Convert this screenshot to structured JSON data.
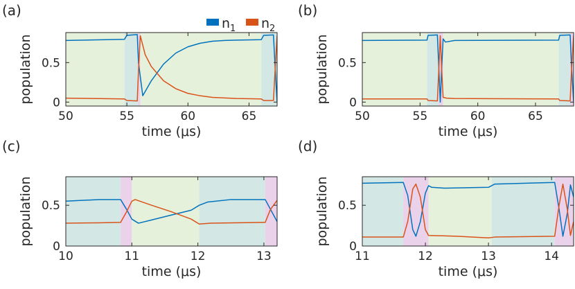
{
  "legend": {
    "items": [
      {
        "label": "n",
        "sub": "1",
        "color": "#0072BD"
      },
      {
        "label": "n",
        "sub": "2",
        "color": "#D95319"
      }
    ]
  },
  "colors": {
    "green": "#E6F1DC",
    "teal": "#D3E8E5",
    "pink": "#EBD2EB",
    "n1": "#0072BD",
    "n2": "#D95319",
    "axis": "#262626"
  },
  "chart_data": [
    {
      "panel": "(a)",
      "type": "line",
      "xlabel": "time (μs)",
      "ylabel": "population",
      "xlim": [
        50,
        67.3
      ],
      "ylim": [
        -0.05,
        0.88
      ],
      "xticks": [
        50,
        55,
        60,
        65
      ],
      "yticks": [
        0,
        0.5
      ],
      "regions": [
        {
          "from": 50,
          "to": 54.8,
          "color": "green"
        },
        {
          "from": 54.8,
          "to": 55.9,
          "color": "teal"
        },
        {
          "from": 55.9,
          "to": 56.1,
          "color": "pink"
        },
        {
          "from": 56.1,
          "to": 66.0,
          "color": "green"
        },
        {
          "from": 66.0,
          "to": 67.3,
          "color": "teal"
        }
      ],
      "series": [
        {
          "name": "n1",
          "color": "n1",
          "points": [
            [
              50,
              0.78
            ],
            [
              54.8,
              0.795
            ],
            [
              55.0,
              0.845
            ],
            [
              55.85,
              0.855
            ],
            [
              55.95,
              0.5
            ],
            [
              56.3,
              0.08
            ],
            [
              57,
              0.27
            ],
            [
              58,
              0.48
            ],
            [
              59,
              0.62
            ],
            [
              60,
              0.7
            ],
            [
              61,
              0.745
            ],
            [
              62,
              0.77
            ],
            [
              63,
              0.78
            ],
            [
              64,
              0.785
            ],
            [
              66.0,
              0.79
            ],
            [
              66.2,
              0.845
            ],
            [
              67.0,
              0.85
            ],
            [
              67.15,
              0.4
            ],
            [
              67.3,
              0.0
            ]
          ]
        },
        {
          "name": "n2",
          "color": "n2",
          "points": [
            [
              50,
              0.05
            ],
            [
              54.8,
              0.04
            ],
            [
              55.0,
              0.02
            ],
            [
              55.85,
              0.015
            ],
            [
              55.95,
              0.4
            ],
            [
              56.1,
              0.84
            ],
            [
              56.5,
              0.6
            ],
            [
              57,
              0.45
            ],
            [
              58,
              0.27
            ],
            [
              59,
              0.17
            ],
            [
              60,
              0.11
            ],
            [
              61,
              0.08
            ],
            [
              62,
              0.06
            ],
            [
              64,
              0.045
            ],
            [
              66.0,
              0.04
            ],
            [
              66.2,
              0.02
            ],
            [
              67.0,
              0.02
            ],
            [
              67.15,
              0.45
            ],
            [
              67.3,
              0.84
            ]
          ]
        }
      ]
    },
    {
      "panel": "(b)",
      "type": "line",
      "xlabel": "time (μs)",
      "ylabel": "population",
      "xlim": [
        50,
        68.3
      ],
      "ylim": [
        -0.05,
        0.88
      ],
      "xticks": [
        50,
        55,
        60,
        65
      ],
      "yticks": [
        0,
        0.5
      ],
      "regions": [
        {
          "from": 50,
          "to": 55.6,
          "color": "green"
        },
        {
          "from": 55.6,
          "to": 56.6,
          "color": "teal"
        },
        {
          "from": 56.6,
          "to": 57.0,
          "color": "pink"
        },
        {
          "from": 57.0,
          "to": 67.0,
          "color": "green"
        },
        {
          "from": 67.0,
          "to": 68.0,
          "color": "teal"
        },
        {
          "from": 68.0,
          "to": 68.3,
          "color": "pink"
        }
      ],
      "series": [
        {
          "name": "n1",
          "color": "n1",
          "points": [
            [
              50,
              0.78
            ],
            [
              55.6,
              0.785
            ],
            [
              55.7,
              0.845
            ],
            [
              56.5,
              0.85
            ],
            [
              56.62,
              0.45
            ],
            [
              56.75,
              0.0
            ],
            [
              56.88,
              0.45
            ],
            [
              57.0,
              0.8
            ],
            [
              57.2,
              0.76
            ],
            [
              58,
              0.78
            ],
            [
              67.0,
              0.785
            ],
            [
              67.1,
              0.845
            ],
            [
              68.0,
              0.85
            ],
            [
              68.12,
              0.45
            ],
            [
              68.3,
              0.0
            ]
          ]
        },
        {
          "name": "n2",
          "color": "n2",
          "points": [
            [
              50,
              0.04
            ],
            [
              55.6,
              0.04
            ],
            [
              55.7,
              0.02
            ],
            [
              56.5,
              0.015
            ],
            [
              56.62,
              0.4
            ],
            [
              56.75,
              0.84
            ],
            [
              56.88,
              0.4
            ],
            [
              57.0,
              0.06
            ],
            [
              57.3,
              0.05
            ],
            [
              58,
              0.045
            ],
            [
              67.0,
              0.04
            ],
            [
              67.1,
              0.02
            ],
            [
              68.0,
              0.015
            ],
            [
              68.12,
              0.4
            ],
            [
              68.3,
              0.84
            ]
          ]
        }
      ]
    },
    {
      "panel": "(c)",
      "type": "line",
      "xlabel": "time (μs)",
      "ylabel": "population",
      "xlim": [
        10,
        13.2
      ],
      "ylim": [
        0,
        0.85
      ],
      "xticks": [
        10,
        11,
        12,
        13
      ],
      "yticks": [
        0,
        0.5
      ],
      "regions": [
        {
          "from": 10,
          "to": 10.83,
          "color": "teal"
        },
        {
          "from": 10.83,
          "to": 11.0,
          "color": "pink"
        },
        {
          "from": 11.0,
          "to": 12.02,
          "color": "green"
        },
        {
          "from": 12.02,
          "to": 13.02,
          "color": "teal"
        },
        {
          "from": 13.02,
          "to": 13.2,
          "color": "pink"
        }
      ],
      "series": [
        {
          "name": "n1",
          "color": "n1",
          "points": [
            [
              10,
              0.55
            ],
            [
              10.5,
              0.57
            ],
            [
              10.83,
              0.57
            ],
            [
              10.92,
              0.45
            ],
            [
              11.0,
              0.33
            ],
            [
              11.1,
              0.28
            ],
            [
              11.3,
              0.32
            ],
            [
              11.6,
              0.38
            ],
            [
              11.9,
              0.44
            ],
            [
              12.02,
              0.5
            ],
            [
              12.15,
              0.54
            ],
            [
              12.5,
              0.57
            ],
            [
              13.02,
              0.57
            ],
            [
              13.1,
              0.45
            ],
            [
              13.2,
              0.3
            ]
          ]
        },
        {
          "name": "n2",
          "color": "n2",
          "points": [
            [
              10,
              0.28
            ],
            [
              10.5,
              0.285
            ],
            [
              10.83,
              0.29
            ],
            [
              10.92,
              0.42
            ],
            [
              11.0,
              0.55
            ],
            [
              11.05,
              0.57
            ],
            [
              11.3,
              0.5
            ],
            [
              11.6,
              0.42
            ],
            [
              11.9,
              0.33
            ],
            [
              12.02,
              0.27
            ],
            [
              12.2,
              0.28
            ],
            [
              13.02,
              0.29
            ],
            [
              13.1,
              0.45
            ],
            [
              13.2,
              0.56
            ]
          ]
        }
      ]
    },
    {
      "panel": "(d)",
      "type": "line",
      "xlabel": "time (μs)",
      "ylabel": "population",
      "xlim": [
        11,
        14.35
      ],
      "ylim": [
        0,
        0.85
      ],
      "xticks": [
        11,
        12,
        13,
        14
      ],
      "yticks": [
        0,
        0.5
      ],
      "regions": [
        {
          "from": 11,
          "to": 11.65,
          "color": "teal"
        },
        {
          "from": 11.65,
          "to": 12.05,
          "color": "pink"
        },
        {
          "from": 12.05,
          "to": 13.05,
          "color": "green"
        },
        {
          "from": 13.05,
          "to": 14.05,
          "color": "teal"
        },
        {
          "from": 14.05,
          "to": 14.35,
          "color": "pink"
        }
      ],
      "series": [
        {
          "name": "n1",
          "color": "n1",
          "points": [
            [
              11,
              0.77
            ],
            [
              11.65,
              0.78
            ],
            [
              11.72,
              0.62
            ],
            [
              11.8,
              0.2
            ],
            [
              11.85,
              0.12
            ],
            [
              11.92,
              0.3
            ],
            [
              12.0,
              0.65
            ],
            [
              12.05,
              0.74
            ],
            [
              12.1,
              0.72
            ],
            [
              12.3,
              0.71
            ],
            [
              13.0,
              0.72
            ],
            [
              13.1,
              0.76
            ],
            [
              14.05,
              0.78
            ],
            [
              14.12,
              0.45
            ],
            [
              14.18,
              0.12
            ],
            [
              14.25,
              0.4
            ],
            [
              14.3,
              0.75
            ],
            [
              14.35,
              0.6
            ]
          ]
        },
        {
          "name": "n2",
          "color": "n2",
          "points": [
            [
              11,
              0.11
            ],
            [
              11.65,
              0.11
            ],
            [
              11.72,
              0.3
            ],
            [
              11.8,
              0.7
            ],
            [
              11.85,
              0.76
            ],
            [
              11.92,
              0.6
            ],
            [
              12.0,
              0.2
            ],
            [
              12.05,
              0.13
            ],
            [
              12.5,
              0.12
            ],
            [
              13.0,
              0.1
            ],
            [
              13.1,
              0.11
            ],
            [
              14.05,
              0.12
            ],
            [
              14.12,
              0.5
            ],
            [
              14.18,
              0.76
            ],
            [
              14.25,
              0.45
            ],
            [
              14.3,
              0.13
            ],
            [
              14.35,
              0.3
            ]
          ]
        }
      ]
    }
  ]
}
